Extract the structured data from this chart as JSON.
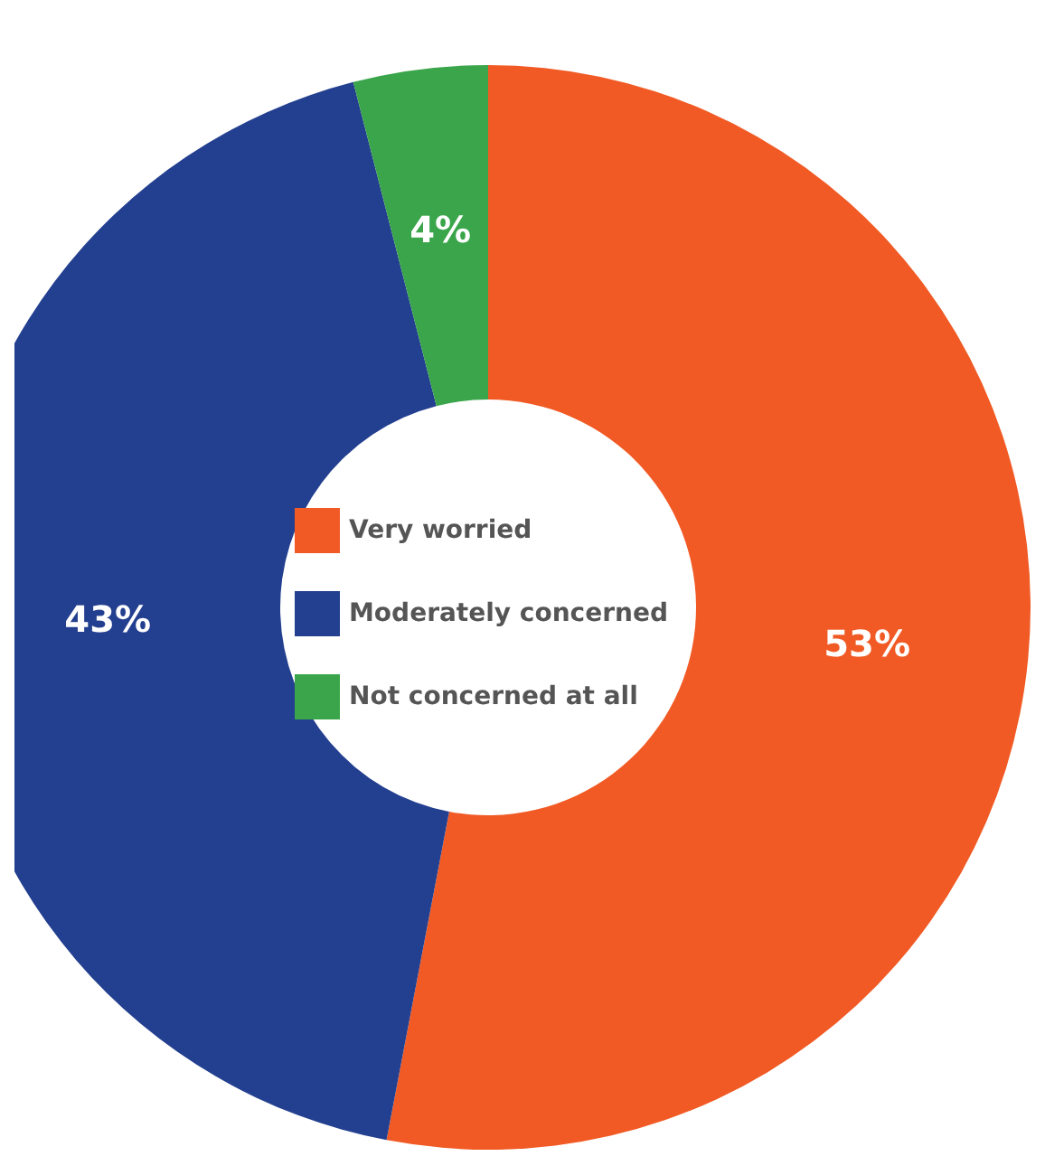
{
  "chart_data": {
    "type": "donut",
    "categories": [
      "Very worried",
      "Moderately concerned",
      "Not concerned at all"
    ],
    "values": [
      53,
      43,
      4
    ],
    "value_labels": [
      "53%",
      "43%",
      "4%"
    ],
    "colors": [
      "#f15a24",
      "#233f8f",
      "#3aa54a"
    ],
    "legend": "center"
  }
}
